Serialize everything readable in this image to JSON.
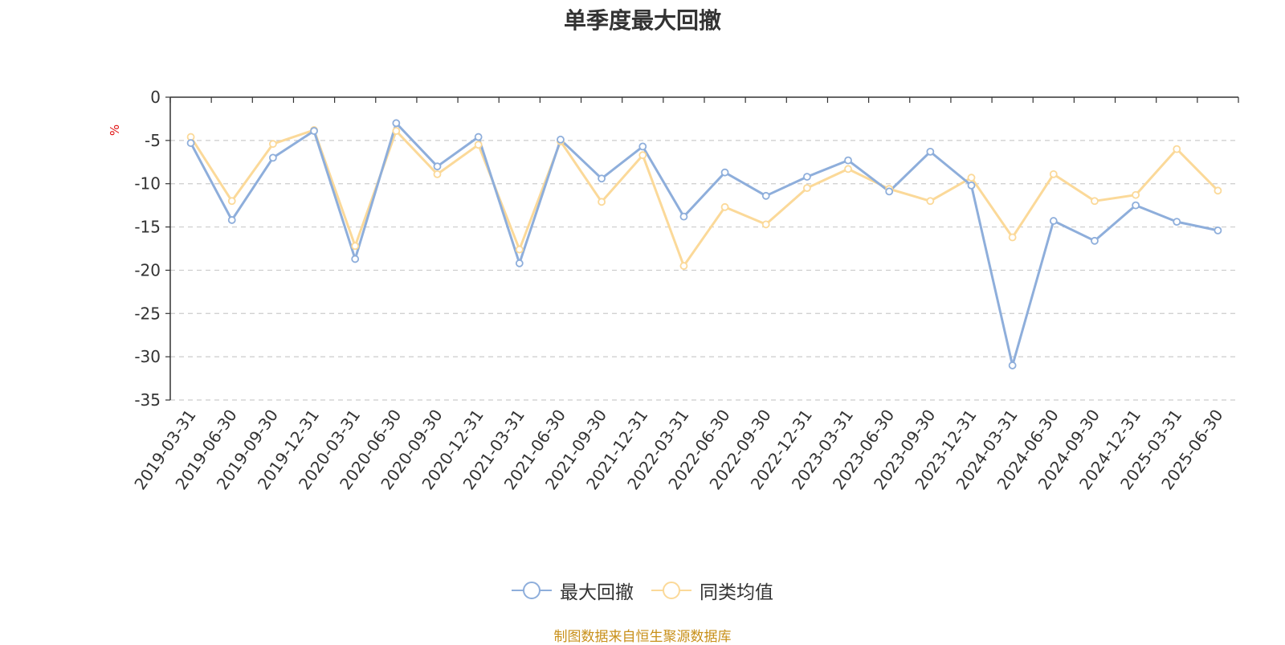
{
  "chart_data": {
    "type": "line",
    "title": "单季度最大回撤",
    "ylabel": "%",
    "xlabel": "",
    "ylim": [
      -35,
      0
    ],
    "yticks": [
      0,
      -5,
      -10,
      -15,
      -20,
      -25,
      -30,
      -35
    ],
    "grid": true,
    "legend_position": "bottom",
    "categories": [
      "2019-03-31",
      "2019-06-30",
      "2019-09-30",
      "2019-12-31",
      "2020-03-31",
      "2020-06-30",
      "2020-09-30",
      "2020-12-31",
      "2021-03-31",
      "2021-06-30",
      "2021-09-30",
      "2021-12-31",
      "2022-03-31",
      "2022-06-30",
      "2022-09-30",
      "2022-12-31",
      "2023-03-31",
      "2023-06-30",
      "2023-09-30",
      "2023-12-31",
      "2024-03-31",
      "2024-06-30",
      "2024-09-30",
      "2024-12-31",
      "2025-03-31",
      "2025-06-30"
    ],
    "series": [
      {
        "name": "最大回撤",
        "color": "#8eaedb",
        "values": [
          -5.3,
          -14.2,
          -7.0,
          -3.9,
          -18.7,
          -3.0,
          -8.0,
          -4.6,
          -19.2,
          -4.9,
          -9.4,
          -5.7,
          -13.8,
          -8.7,
          -11.4,
          -9.2,
          -7.3,
          -10.9,
          -6.3,
          -10.2,
          -31.0,
          -14.3,
          -16.6,
          -12.5,
          -14.4,
          -15.4
        ]
      },
      {
        "name": "同类均值",
        "color": "#fbd999",
        "values": [
          -4.6,
          -12.0,
          -5.4,
          -3.8,
          -17.2,
          -3.9,
          -8.9,
          -5.5,
          -17.6,
          -5.1,
          -12.1,
          -6.7,
          -19.5,
          -12.7,
          -14.7,
          -10.5,
          -8.3,
          -10.6,
          -12.0,
          -9.3,
          -16.2,
          -8.9,
          -12.0,
          -11.3,
          -6.0,
          -10.8
        ]
      }
    ],
    "source_note": "制图数据来自恒生聚源数据库"
  }
}
